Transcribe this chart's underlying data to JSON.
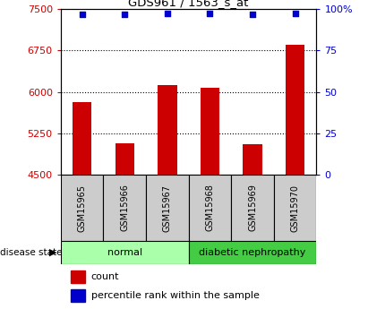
{
  "title": "GDS961 / 1563_s_at",
  "samples": [
    "GSM15965",
    "GSM15966",
    "GSM15967",
    "GSM15968",
    "GSM15969",
    "GSM15970"
  ],
  "counts": [
    5820,
    5070,
    6120,
    6080,
    5050,
    6850
  ],
  "percentile_ranks": [
    97,
    97,
    97.5,
    97.5,
    97,
    97.5
  ],
  "bar_color": "#cc0000",
  "dot_color": "#0000cc",
  "left_ylim": [
    4500,
    7500
  ],
  "left_yticks": [
    4500,
    5250,
    6000,
    6750,
    7500
  ],
  "right_ylim": [
    0,
    100
  ],
  "right_yticks": [
    0,
    25,
    50,
    75,
    100
  ],
  "right_yticklabels": [
    "0",
    "25",
    "50",
    "75",
    "100%"
  ],
  "left_tick_color": "#cc0000",
  "right_tick_color": "#0000cc",
  "grid_yticks": [
    5250,
    6000,
    6750
  ],
  "disease_state_label": "disease state",
  "legend_count_label": "count",
  "legend_percentile_label": "percentile rank within the sample",
  "sample_box_color": "#cccccc",
  "normal_color": "#aaffaa",
  "diabetic_color": "#44cc44",
  "figsize": [
    4.11,
    3.45
  ],
  "dpi": 100
}
